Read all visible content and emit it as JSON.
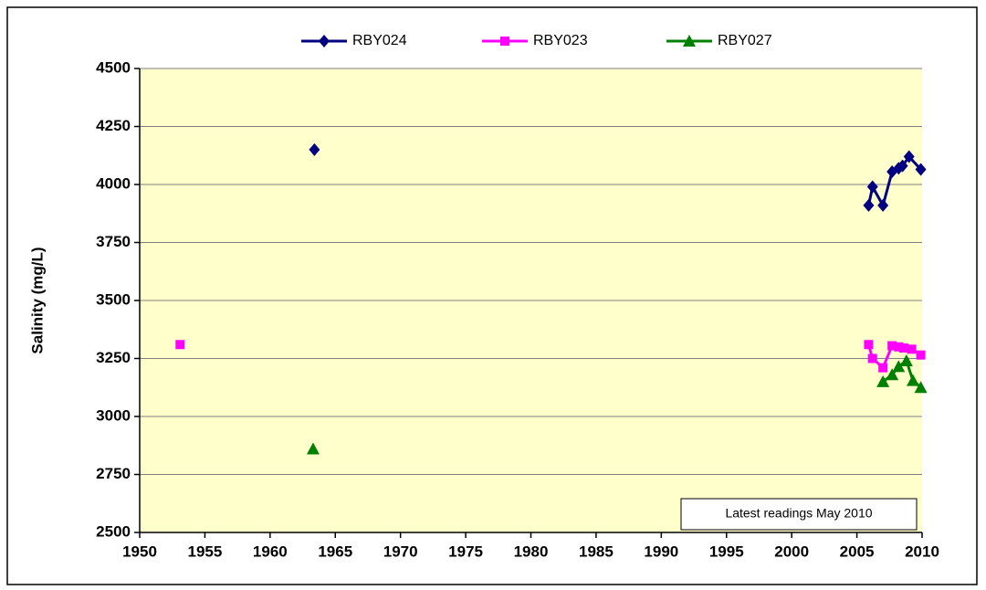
{
  "chart_data": {
    "type": "line",
    "y_label": "Salinity (mg/L)",
    "annotation": "Latest readings  May 2010",
    "xlim": [
      1950,
      2010
    ],
    "xticks": [
      1950,
      1955,
      1960,
      1965,
      1970,
      1975,
      1980,
      1985,
      1990,
      1995,
      2000,
      2005,
      2010
    ],
    "ylim": [
      2500,
      4500
    ],
    "yticks": [
      2500,
      2750,
      3000,
      3250,
      3500,
      3750,
      4000,
      4250,
      4500
    ],
    "grid": true,
    "legend": "top",
    "background": "#ffffcc",
    "series": [
      {
        "name": "RBY024",
        "color": "#000080",
        "marker": "diamond",
        "x": [
          1963.4,
          null,
          2005.9,
          2006.2,
          2007.0,
          2007.7,
          2008.2,
          2008.5,
          2009.0,
          2009.9
        ],
        "values": [
          4150,
          null,
          3910,
          3990,
          3910,
          4055,
          4070,
          4080,
          4120,
          4065
        ]
      },
      {
        "name": "RBY023",
        "color": "#ff00ff",
        "marker": "square",
        "x": [
          1953.1,
          null,
          2005.9,
          2006.2,
          2007.0,
          2007.7,
          2008.2,
          2008.6,
          2009.2,
          2009.9
        ],
        "values": [
          3310,
          null,
          3310,
          3250,
          3210,
          3305,
          3300,
          3295,
          3290,
          3265
        ]
      },
      {
        "name": "RBY027",
        "color": "#008000",
        "marker": "triangle",
        "x": [
          1963.3,
          null,
          2007.0,
          2007.7,
          2008.2,
          2008.8,
          2009.3,
          2009.9
        ],
        "values": [
          2860,
          null,
          3150,
          3180,
          3215,
          3240,
          3155,
          3125
        ]
      }
    ]
  }
}
